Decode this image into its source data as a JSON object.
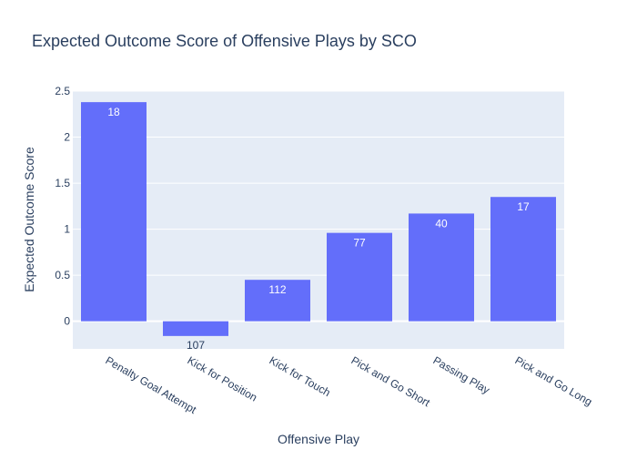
{
  "chart_data": {
    "type": "bar",
    "title": "Expected Outcome Score of Offensive Plays by SCO",
    "xlabel": "Offensive Play",
    "ylabel": "Expected Outcome Score",
    "categories": [
      "Penalty Goal Attempt",
      "Kick for Position",
      "Kick for Touch",
      "Pick and Go Short",
      "Passing Play",
      "Pick and Go Long"
    ],
    "values": [
      2.38,
      -0.16,
      0.45,
      0.96,
      1.17,
      1.35
    ],
    "bar_labels": [
      "18",
      "107",
      "112",
      "77",
      "40",
      "17"
    ],
    "ylim": [
      -0.3,
      2.5
    ],
    "yticks": [
      0,
      0.5,
      1,
      1.5,
      2,
      2.5
    ],
    "ytick_labels": [
      "0",
      "0.5",
      "1",
      "1.5",
      "2",
      "2.5"
    ],
    "grid": true,
    "colors": {
      "bar": "#636efa",
      "plot_bg": "#e5ecf6",
      "grid": "#ffffff",
      "text": "#2a3f5f",
      "label_inside": "#ffffff",
      "label_outside": "#2a3f5f"
    }
  }
}
